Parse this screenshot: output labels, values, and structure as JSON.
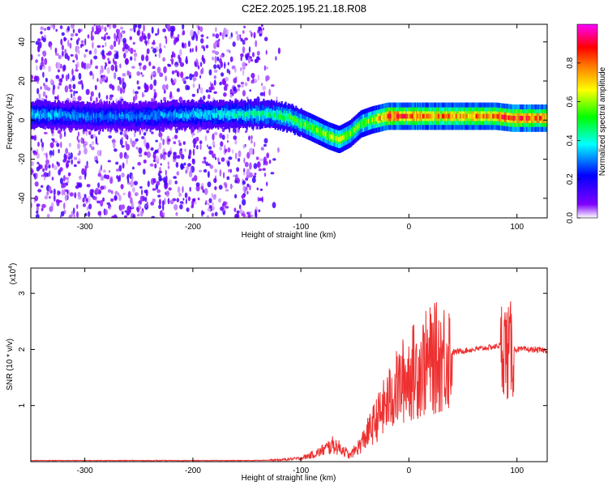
{
  "title": "C2E2.2025.195.21.18.R08",
  "chart_data": [
    {
      "type": "heatmap",
      "xlabel": "Height of straight line (km)",
      "ylabel": "Frequency (Hz)",
      "xlim": [
        -350,
        128
      ],
      "ylim": [
        -50,
        49
      ],
      "xticks": [
        -300,
        -200,
        -100,
        0,
        100
      ],
      "yticks": [
        -40,
        -20,
        0,
        20,
        40
      ],
      "colorbar": {
        "label": "Normalized spectral amplitude",
        "range": [
          0,
          1
        ],
        "ticks": [
          "0.0",
          "0.2",
          "0.4",
          "0.6",
          "0.8"
        ],
        "colors": [
          "#ffffff",
          "#8000ff",
          "#0000ff",
          "#00ffff",
          "#00ff00",
          "#ffff00",
          "#ff8000",
          "#ff0000",
          "#ff00ff"
        ]
      },
      "ridge": {
        "x": [
          -350,
          -300,
          -250,
          -200,
          -160,
          -130,
          -110,
          -90,
          -75,
          -65,
          -55,
          -45,
          -35,
          -20,
          0,
          40,
          80,
          95,
          128
        ],
        "freq": [
          3,
          2,
          2,
          3,
          3,
          3,
          1,
          -4,
          -8,
          -10,
          -7,
          -2,
          0,
          2,
          2,
          2,
          2,
          1,
          1
        ],
        "amplitude": [
          0.35,
          0.3,
          0.3,
          0.35,
          0.4,
          0.45,
          0.5,
          0.55,
          0.6,
          0.6,
          0.55,
          0.55,
          0.6,
          0.85,
          0.8,
          0.75,
          0.8,
          0.85,
          0.8
        ]
      }
    },
    {
      "type": "line",
      "xlabel": "Height of straight line (km)",
      "ylabel": "SNR (10 * v/v)",
      "multiplier": "(x10",
      "multiplier_exp": "4",
      "multiplier_close": ")",
      "xlim": [
        -350,
        128
      ],
      "ylim": [
        0,
        3.45
      ],
      "xticks": [
        -300,
        -200,
        -100,
        0,
        100
      ],
      "yticks": [
        1,
        2,
        3
      ],
      "series": [
        {
          "color": "#ee3030",
          "x": [
            -350,
            -150,
            -120,
            -100,
            -85,
            -70,
            -60,
            -55,
            -45,
            -35,
            -25,
            -15,
            -5,
            0,
            20,
            40,
            60,
            80,
            88,
            92,
            95,
            100,
            110,
            128
          ],
          "y": [
            0.02,
            0.02,
            0.03,
            0.06,
            0.15,
            0.3,
            0.2,
            0.1,
            0.3,
            0.6,
            0.9,
            1.2,
            1.45,
            1.55,
            1.8,
            1.95,
            2.0,
            2.05,
            2.1,
            1.9,
            2.0,
            2.0,
            2.0,
            1.98
          ]
        }
      ]
    }
  ]
}
